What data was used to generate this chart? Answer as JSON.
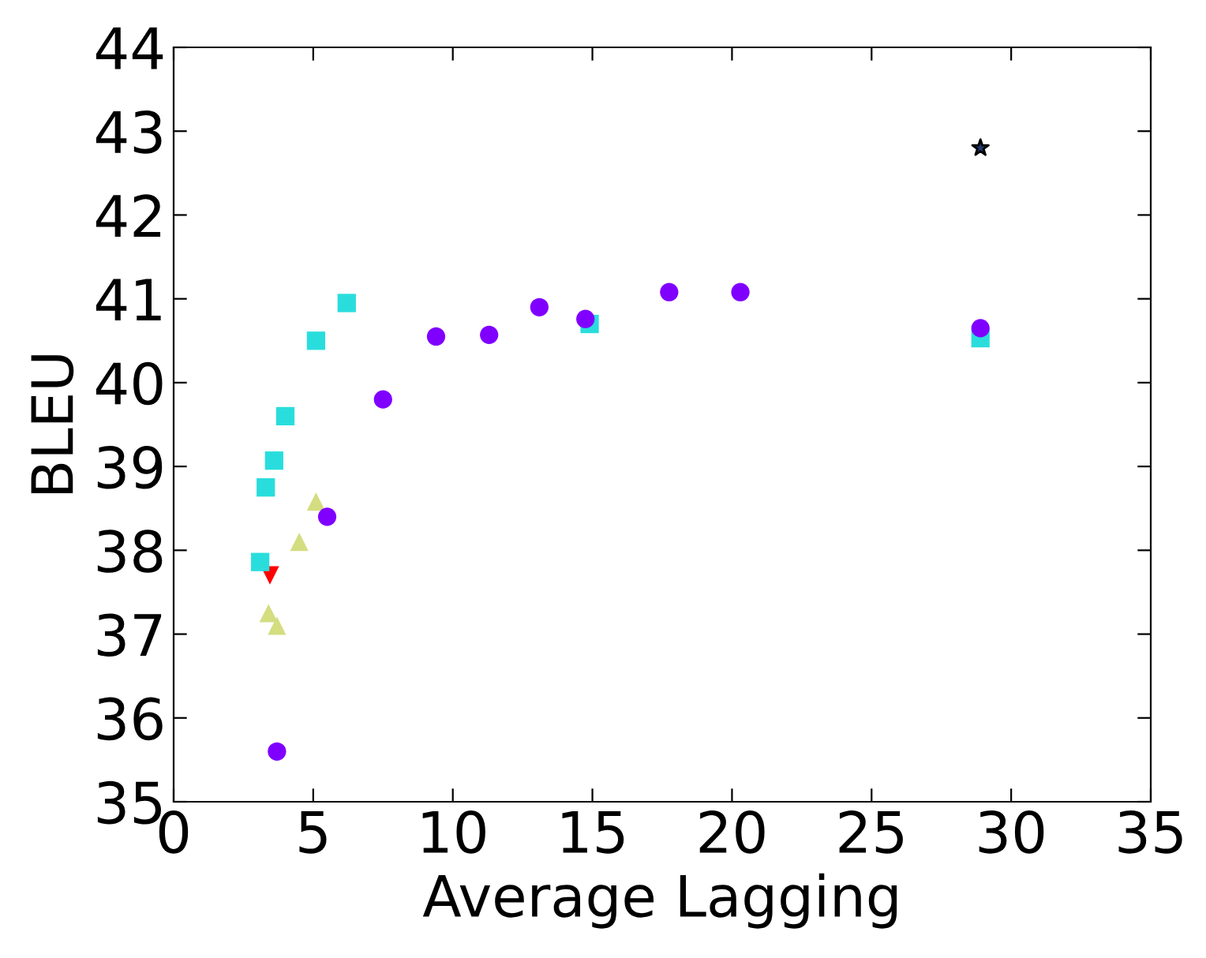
{
  "chart_data": {
    "type": "scatter",
    "xlabel": "Average Lagging",
    "ylabel": "BLEU",
    "xlim": [
      0,
      35
    ],
    "ylim": [
      35,
      44
    ],
    "xticks": [
      0,
      5,
      10,
      15,
      20,
      25,
      30,
      35
    ],
    "yticks": [
      35,
      36,
      37,
      38,
      39,
      40,
      41,
      42,
      43,
      44
    ],
    "grid": false,
    "legend": false,
    "series": [
      {
        "color": "#8000ff",
        "marker": "circle",
        "x": [
          3.7,
          5.5,
          7.5,
          9.4,
          11.3,
          13.1,
          14.75,
          17.75,
          20.3,
          28.9
        ],
        "values": [
          35.6,
          38.4,
          39.8,
          40.55,
          40.57,
          40.9,
          40.76,
          41.08,
          41.08,
          40.65
        ]
      },
      {
        "color": "#2adddd",
        "marker": "square",
        "x": [
          3.1,
          3.3,
          3.6,
          4.0,
          5.1,
          6.2,
          14.9,
          28.9
        ],
        "values": [
          37.86,
          38.75,
          39.07,
          39.6,
          40.5,
          40.95,
          40.7,
          40.53
        ]
      },
      {
        "color": "#d4dd80",
        "marker": "triangle",
        "x": [
          3.4,
          3.7,
          4.5,
          5.1
        ],
        "values": [
          37.25,
          37.1,
          38.1,
          38.58
        ]
      },
      {
        "color": "#ff0000",
        "marker": "triangle_down",
        "x": [
          3.45
        ],
        "values": [
          37.7
        ]
      },
      {
        "color": "#1f3a6f",
        "marker": "star",
        "x": [
          28.9
        ],
        "values": [
          42.8
        ]
      }
    ]
  }
}
